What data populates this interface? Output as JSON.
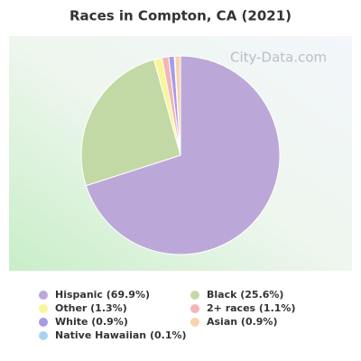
{
  "chart_data": {
    "type": "pie",
    "title": "Races in Compton, CA (2021)",
    "watermark": "City-Data.com",
    "categories": [
      "Hispanic (69.9%)",
      "Black (25.6%)",
      "Other (1.3%)",
      "2+ races (1.1%)",
      "White (0.9%)",
      "Native Hawaiian (0.1%)",
      "Asian (0.9%)"
    ],
    "values": [
      69.9,
      25.6,
      1.3,
      1.1,
      0.9,
      0.1,
      0.9
    ],
    "colors": [
      "#bca8d8",
      "#c3d9a5",
      "#f7f79a",
      "#f3b6b6",
      "#a99ae8",
      "#a8d2f2",
      "#f5d4ae"
    ]
  }
}
